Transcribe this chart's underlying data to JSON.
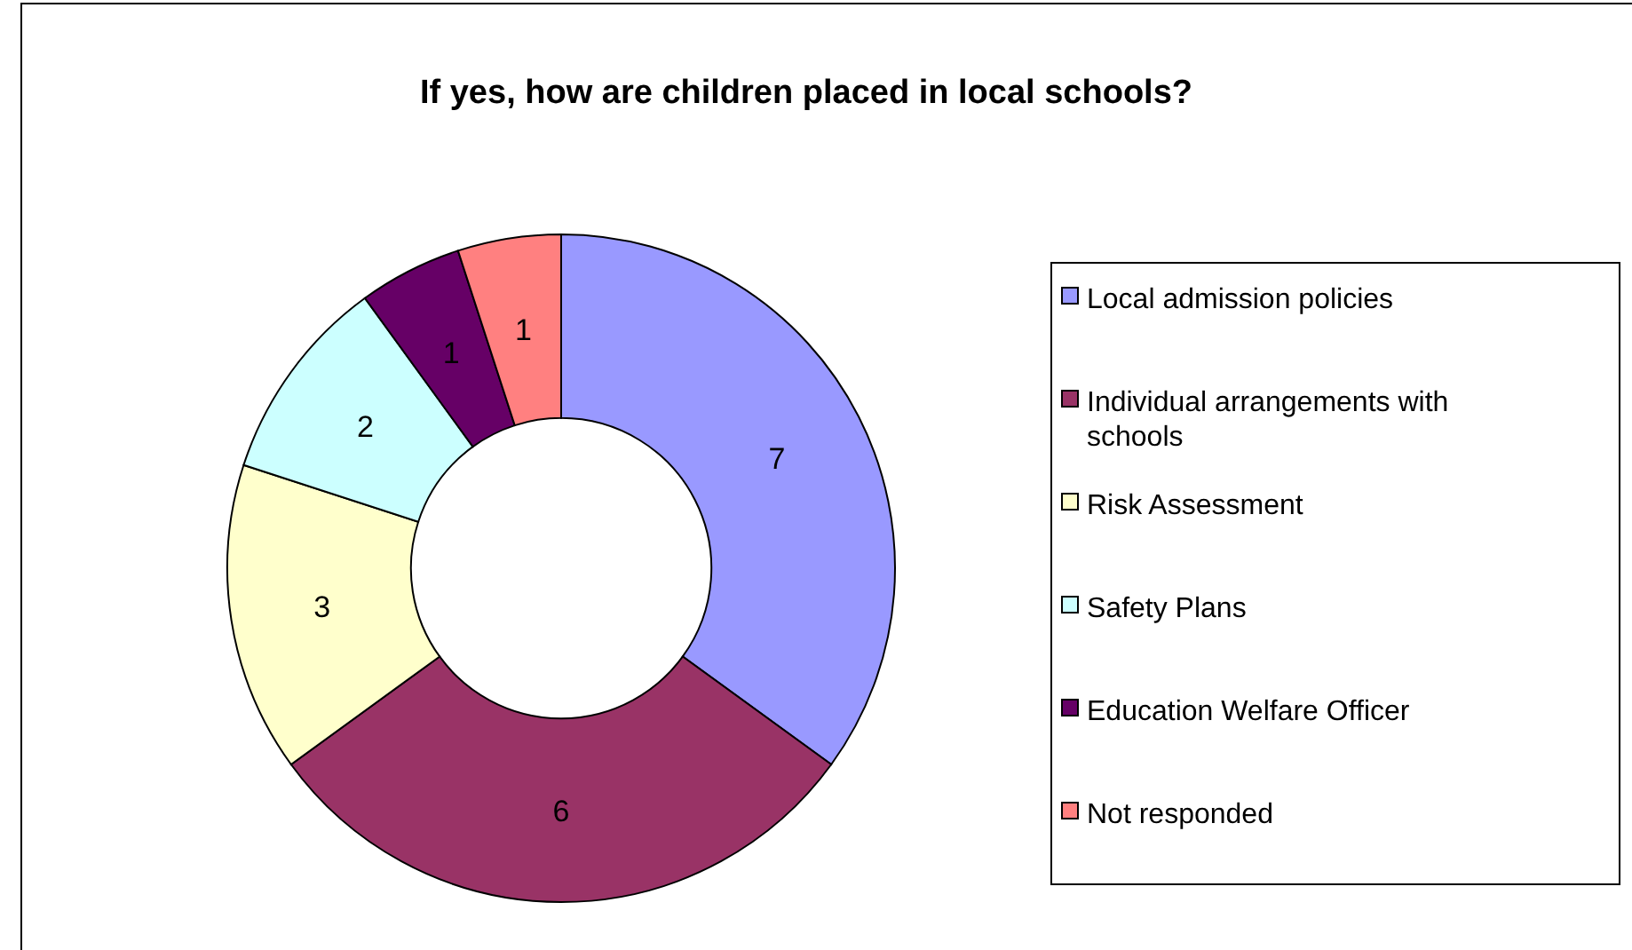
{
  "chart_data": {
    "type": "donut",
    "title": "If yes, how are children placed in local schools?",
    "categories": [
      "Local admission policies",
      "Individual arrangements with schools",
      "Risk Assessment",
      "Safety Plans",
      "Education Welfare Officer",
      "Not responded"
    ],
    "values": [
      7,
      6,
      3,
      2,
      1,
      1
    ],
    "colors": [
      "#9999ff",
      "#993366",
      "#ffffcc",
      "#ccffff",
      "#660066",
      "#ff8080"
    ],
    "data_labels": true,
    "legend": "right"
  }
}
